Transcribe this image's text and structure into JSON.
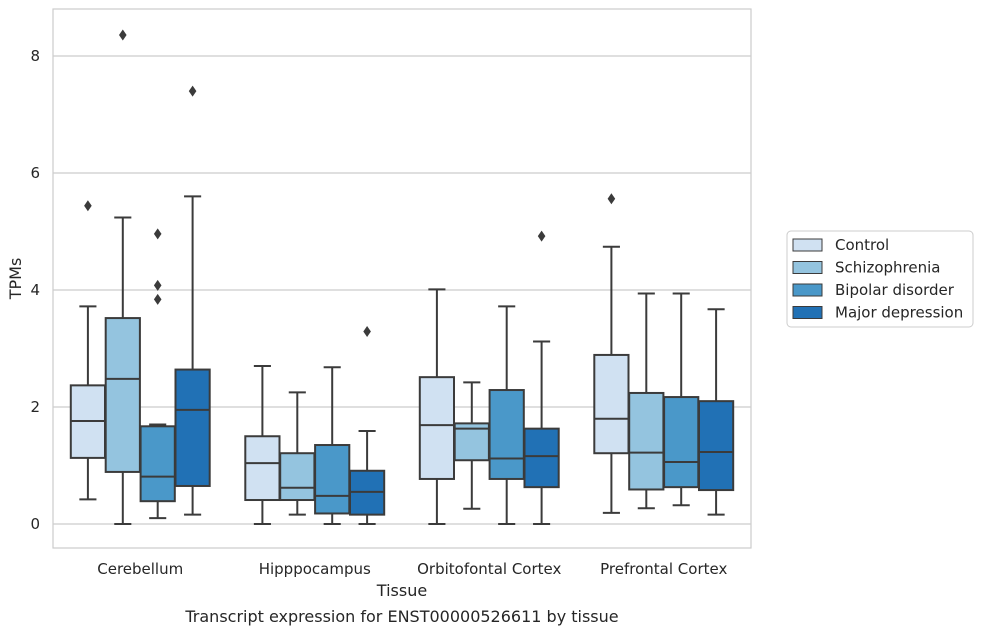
{
  "chart_data": {
    "type": "boxplot",
    "xlabel": "Tissue",
    "ylabel": "TPMs",
    "caption": "Transcript expression for ENST00000526611 by tissue",
    "ylim": [
      -0.4,
      8.8
    ],
    "yticks": [
      0,
      2,
      4,
      6,
      8
    ],
    "grid": "horizontal",
    "legend_position": "right",
    "categories": [
      "Cerebellum",
      "Hipppocampus",
      "Orbitofontal Cortex",
      "Prefrontal Cortex"
    ],
    "series": [
      {
        "name": "Control",
        "color": "#d0e1f2",
        "boxes": [
          {
            "whislo": 0.42,
            "q1": 1.13,
            "med": 1.76,
            "q3": 2.37,
            "whishi": 3.72,
            "fliers": [
              5.44
            ]
          },
          {
            "whislo": 0.0,
            "q1": 0.41,
            "med": 1.04,
            "q3": 1.5,
            "whishi": 2.7,
            "fliers": []
          },
          {
            "whislo": 0.0,
            "q1": 0.77,
            "med": 1.69,
            "q3": 2.51,
            "whishi": 4.01,
            "fliers": []
          },
          {
            "whislo": 0.19,
            "q1": 1.21,
            "med": 1.8,
            "q3": 2.89,
            "whishi": 4.74,
            "fliers": [
              5.56
            ]
          }
        ]
      },
      {
        "name": "Schizophrenia",
        "color": "#94c4df",
        "boxes": [
          {
            "whislo": 0.0,
            "q1": 0.89,
            "med": 2.48,
            "q3": 3.52,
            "whishi": 5.24,
            "fliers": [
              8.36
            ]
          },
          {
            "whislo": 0.16,
            "q1": 0.41,
            "med": 0.62,
            "q3": 1.21,
            "whishi": 2.25,
            "fliers": []
          },
          {
            "whislo": 0.26,
            "q1": 1.09,
            "med": 1.63,
            "q3": 1.72,
            "whishi": 2.42,
            "fliers": []
          },
          {
            "whislo": 0.27,
            "q1": 0.59,
            "med": 1.22,
            "q3": 2.24,
            "whishi": 3.94,
            "fliers": []
          }
        ]
      },
      {
        "name": "Bipolar disorder",
        "color": "#4a98c9",
        "boxes": [
          {
            "whislo": 0.1,
            "q1": 0.39,
            "med": 0.81,
            "q3": 1.67,
            "whishi": 1.7,
            "fliers": [
              3.84,
              4.08,
              4.96
            ]
          },
          {
            "whislo": 0.0,
            "q1": 0.18,
            "med": 0.48,
            "q3": 1.35,
            "whishi": 2.68,
            "fliers": []
          },
          {
            "whislo": 0.0,
            "q1": 0.77,
            "med": 1.12,
            "q3": 2.29,
            "whishi": 3.72,
            "fliers": []
          },
          {
            "whislo": 0.32,
            "q1": 0.63,
            "med": 1.06,
            "q3": 2.17,
            "whishi": 3.94,
            "fliers": []
          }
        ]
      },
      {
        "name": "Major depression",
        "color": "#2171b5",
        "boxes": [
          {
            "whislo": 0.16,
            "q1": 0.65,
            "med": 1.95,
            "q3": 2.64,
            "whishi": 5.6,
            "fliers": [
              7.4
            ]
          },
          {
            "whislo": 0.0,
            "q1": 0.16,
            "med": 0.55,
            "q3": 0.91,
            "whishi": 1.59,
            "fliers": [
              3.29
            ]
          },
          {
            "whislo": 0.0,
            "q1": 0.63,
            "med": 1.16,
            "q3": 1.63,
            "whishi": 3.12,
            "fliers": [
              4.92
            ]
          },
          {
            "whislo": 0.16,
            "q1": 0.58,
            "med": 1.23,
            "q3": 2.1,
            "whishi": 3.67,
            "fliers": []
          }
        ]
      }
    ]
  },
  "colors": {
    "edge": "#3b3b3b",
    "grid": "#cccccc",
    "frame": "#cccccc"
  }
}
